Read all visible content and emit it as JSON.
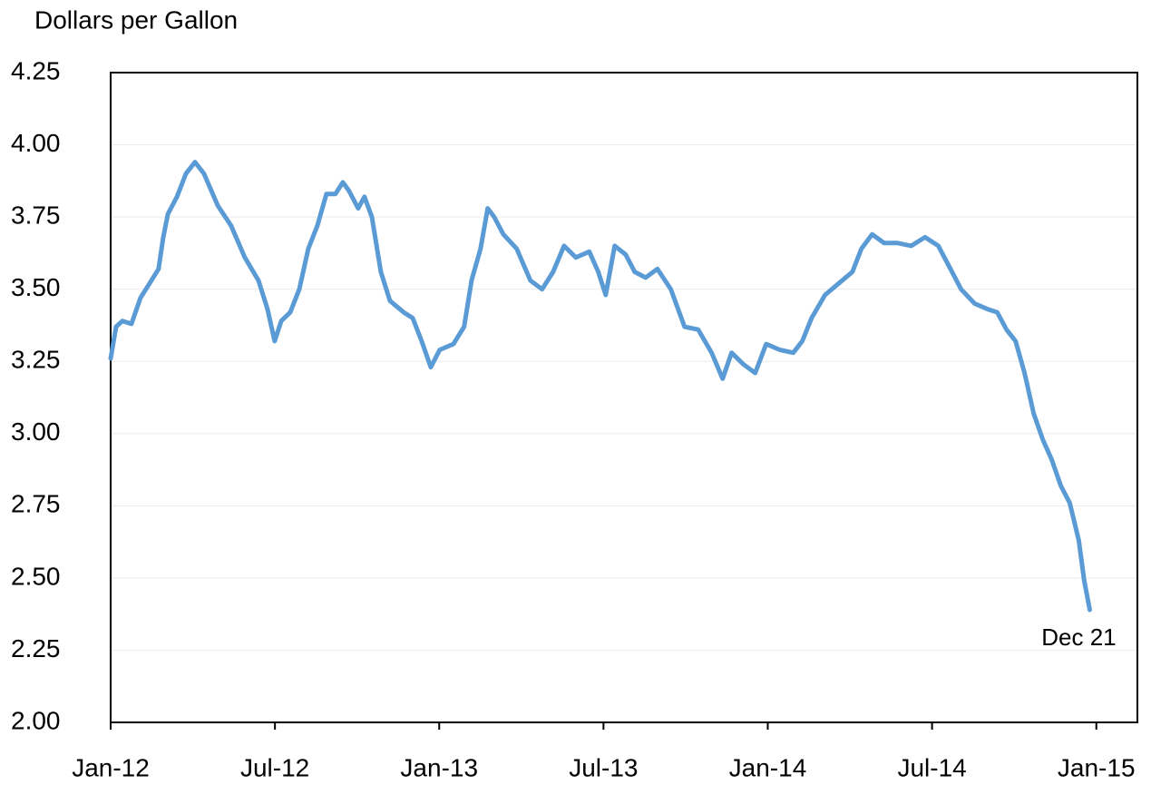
{
  "chart_data": {
    "type": "line",
    "y_label": "Dollars per Gallon",
    "annotation": "Dec 21",
    "color": "#5b9bd5",
    "grid": true,
    "x": [
      0,
      0.2,
      0.43,
      0.76,
      1.09,
      1.42,
      1.75,
      1.92,
      2.09,
      2.42,
      2.75,
      3.08,
      3.41,
      3.91,
      4.4,
      4.9,
      5.4,
      5.73,
      5.99,
      6.23,
      6.56,
      6.89,
      7.22,
      7.55,
      7.88,
      8.21,
      8.48,
      8.71,
      9.04,
      9.27,
      9.54,
      9.87,
      10.2,
      10.7,
      11.03,
      11.36,
      11.69,
      12.02,
      12.52,
      12.91,
      13.18,
      13.51,
      13.77,
      14.01,
      14.34,
      14.83,
      15.33,
      15.76,
      16.16,
      16.56,
      16.99,
      17.48,
      17.81,
      18.08,
      18.41,
      18.81,
      19.14,
      19.54,
      19.97,
      20.46,
      20.96,
      21.46,
      21.95,
      22.35,
      22.68,
      23.11,
      23.54,
      23.94,
      24.44,
      24.93,
      25.26,
      25.6,
      26.09,
      26.59,
      27.09,
      27.42,
      27.81,
      28.25,
      28.74,
      29.24,
      29.74,
      30.23,
      30.73,
      31.06,
      31.56,
      32.05,
      32.38,
      32.72,
      33.05,
      33.38,
      33.71,
      34.04,
      34.37,
      34.7,
      35.03,
      35.36,
      35.56,
      35.76
    ],
    "values": [
      3.26,
      3.37,
      3.39,
      3.38,
      3.47,
      3.52,
      3.57,
      3.68,
      3.76,
      3.82,
      3.9,
      3.94,
      3.9,
      3.79,
      3.72,
      3.61,
      3.53,
      3.43,
      3.32,
      3.39,
      3.42,
      3.5,
      3.64,
      3.72,
      3.83,
      3.83,
      3.87,
      3.84,
      3.78,
      3.82,
      3.75,
      3.56,
      3.46,
      3.42,
      3.4,
      3.32,
      3.23,
      3.29,
      3.31,
      3.37,
      3.53,
      3.64,
      3.78,
      3.75,
      3.69,
      3.64,
      3.53,
      3.5,
      3.56,
      3.65,
      3.61,
      3.63,
      3.56,
      3.48,
      3.65,
      3.62,
      3.56,
      3.54,
      3.57,
      3.5,
      3.37,
      3.36,
      3.28,
      3.19,
      3.28,
      3.24,
      3.21,
      3.31,
      3.29,
      3.28,
      3.32,
      3.4,
      3.48,
      3.52,
      3.56,
      3.64,
      3.69,
      3.66,
      3.66,
      3.65,
      3.68,
      3.65,
      3.56,
      3.5,
      3.45,
      3.43,
      3.42,
      3.36,
      3.32,
      3.21,
      3.07,
      2.98,
      2.91,
      2.82,
      2.76,
      2.63,
      2.49,
      2.39
    ],
    "xlim": [
      0,
      37.5
    ],
    "xticks": [
      {
        "value": 0,
        "label": "Jan-12"
      },
      {
        "value": 6,
        "label": "Jul-12"
      },
      {
        "value": 12,
        "label": "Jan-13"
      },
      {
        "value": 18,
        "label": "Jul-13"
      },
      {
        "value": 24,
        "label": "Jan-14"
      },
      {
        "value": 30,
        "label": "Jul-14"
      },
      {
        "value": 36,
        "label": "Jan-15"
      }
    ],
    "ylim": [
      2,
      4.25
    ],
    "yticks": [
      {
        "value": 2,
        "label": "2.00"
      },
      2.25,
      {
        "value": 2.5,
        "label": "2.50"
      },
      2.75,
      {
        "value": 3,
        "label": "3.00"
      },
      3.25,
      {
        "value": 3.5,
        "label": "3.50"
      },
      3.75,
      {
        "value": 4,
        "label": "4.00"
      },
      4.25
    ]
  }
}
